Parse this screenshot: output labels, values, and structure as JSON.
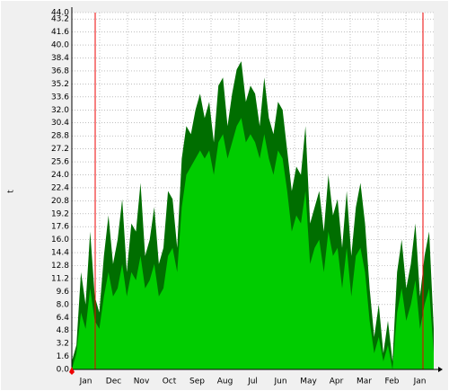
{
  "chart_data": {
    "type": "area",
    "y_label": "t",
    "x_labels": [
      "Jan",
      "Dec",
      "Nov",
      "Oct",
      "Sep",
      "Aug",
      "Jul",
      "Jun",
      "May",
      "Apr",
      "Mar",
      "Feb",
      "Jan"
    ],
    "series": [
      {
        "color": "#006e00",
        "values": [
          1,
          3,
          12,
          8,
          17,
          9,
          7,
          14,
          19,
          13,
          16,
          21,
          12,
          18,
          17,
          23,
          14,
          16,
          20,
          13,
          15,
          22,
          21,
          15,
          26,
          30,
          29,
          32,
          34,
          31,
          33,
          28,
          35,
          36,
          30,
          34,
          37,
          38,
          33,
          35,
          34,
          30,
          36,
          31,
          29,
          33,
          32,
          27,
          22,
          25,
          24,
          30,
          18,
          20,
          22,
          17,
          24,
          19,
          21,
          15,
          22,
          14,
          20,
          23,
          18,
          10,
          4,
          8,
          2,
          6,
          1,
          12,
          16,
          10,
          13,
          18,
          9,
          14,
          17,
          5
        ]
      },
      {
        "color": "#00cc00",
        "values": [
          0,
          2,
          7,
          5,
          10,
          6,
          5,
          9,
          12,
          9,
          10,
          13,
          9,
          12,
          11,
          14,
          10,
          11,
          13,
          9,
          10,
          14,
          15,
          12,
          20,
          24,
          25,
          26,
          27,
          26,
          27,
          24,
          28,
          29,
          26,
          28,
          30,
          31,
          28,
          29,
          28,
          26,
          29,
          26,
          24,
          27,
          26,
          22,
          17,
          19,
          18,
          22,
          13,
          15,
          16,
          12,
          17,
          14,
          15,
          10,
          15,
          9,
          14,
          15,
          12,
          6,
          2,
          4,
          1,
          3,
          0,
          7,
          10,
          6,
          8,
          11,
          5,
          8,
          10,
          2
        ]
      }
    ],
    "ylim": [
      0,
      44
    ],
    "yticks": [
      {
        "value": 0,
        "label": "0.0"
      },
      1.6,
      3.2,
      4.8,
      6.4,
      {
        "value": 8,
        "label": "8.0"
      },
      9.6,
      11.2,
      12.8,
      14.4,
      {
        "value": 16,
        "label": "16.0"
      },
      17.6,
      19.2,
      20.8,
      22.4,
      {
        "value": 24,
        "label": "24.0"
      },
      25.6,
      27.2,
      28.8,
      30.4,
      {
        "value": 32,
        "label": "32.0"
      },
      33.6,
      35.2,
      36.8,
      38.4,
      {
        "value": 40,
        "label": "40.0"
      },
      41.6,
      43.2,
      {
        "value": 44,
        "label": "44.0"
      }
    ],
    "grid": true
  }
}
